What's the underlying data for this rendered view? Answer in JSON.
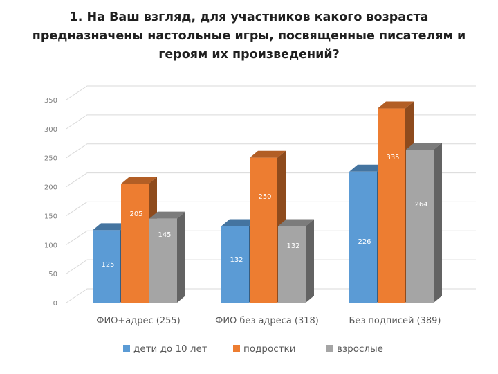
{
  "slide": {
    "title_lines": [
      "1. На Ваш взгляд, для участников какого возраста",
      "предназначены  настольные игры, посвященные писателям и",
      "героям их произведений?"
    ]
  },
  "chart_data": {
    "type": "bar",
    "style": "3d-clustered-column",
    "title": "",
    "categories": [
      "ФИО+адрес (255)",
      "ФИО без адреса (318)",
      "Без подписей (389)"
    ],
    "series": [
      {
        "name": "дети до 10 лет",
        "color": "#5b9bd5",
        "values": [
          125,
          132,
          226
        ]
      },
      {
        "name": "подростки",
        "color": "#ed7d31",
        "values": [
          205,
          250,
          335
        ]
      },
      {
        "name": "взрослые",
        "color": "#a5a5a5",
        "values": [
          145,
          132,
          264
        ]
      }
    ],
    "y_ticks": [
      0,
      50,
      100,
      150,
      200,
      250,
      300,
      350
    ],
    "ylim": [
      0,
      350
    ],
    "grid": true,
    "legend_position": "bottom",
    "xlabel": "",
    "ylabel": ""
  }
}
